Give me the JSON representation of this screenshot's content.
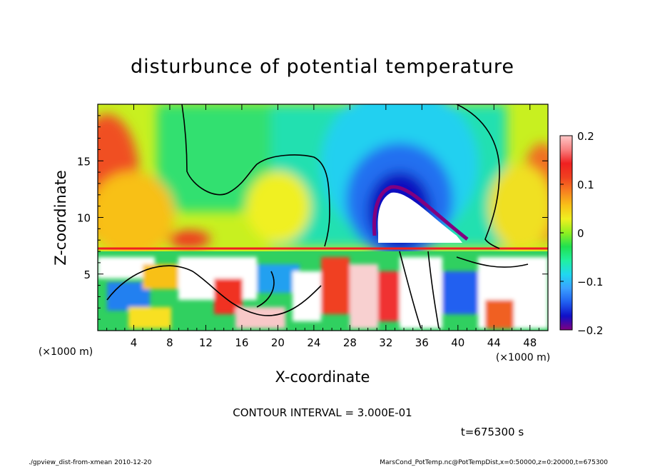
{
  "chart_data": {
    "type": "heatmap",
    "title": "disturbunce of potential temperature",
    "xlabel": "X-coordinate",
    "ylabel": "Z-coordinate",
    "x_unit_label": "(×1000 m)",
    "y_unit_label": "(×1000 m)",
    "xlim": [
      0,
      50
    ],
    "ylim": [
      0,
      20
    ],
    "x_ticks": [
      4,
      8,
      12,
      16,
      20,
      24,
      28,
      32,
      36,
      40,
      44,
      48
    ],
    "x_tick_labels": [
      "4",
      "8",
      "12",
      "16",
      "20",
      "24",
      "28",
      "32",
      "36",
      "40",
      "44",
      "48"
    ],
    "y_ticks": [
      5,
      10,
      15
    ],
    "y_tick_labels": [
      "5",
      "10",
      "15"
    ],
    "colorbar": {
      "range": [
        -0.2,
        0.2
      ],
      "ticks": [
        0.2,
        0.1,
        0,
        -0.1,
        -0.2
      ],
      "tick_labels": [
        "0.2",
        "0.1",
        "0",
        "−0.1",
        "−0.2"
      ],
      "colors": [
        "#800080",
        "#1010c8",
        "#2060f0",
        "#3aa0ff",
        "#20d8f0",
        "#20f0a0",
        "#20e050",
        "#90f020",
        "#f0f020",
        "#f8c018",
        "#f88020",
        "#f04020",
        "#f02020",
        "#f88080",
        "#ffc8c8"
      ]
    },
    "contour_interval_text": "CONTOUR INTERVAL = 3.000E-01",
    "time_text": "t=675300 s"
  },
  "footer": {
    "left": "./gpview_dist-from-xmean  2010-12-20",
    "right": "MarsCond_PotTemp.nc@PotTempDist,x=0:50000,z=0:20000,t=675300"
  }
}
